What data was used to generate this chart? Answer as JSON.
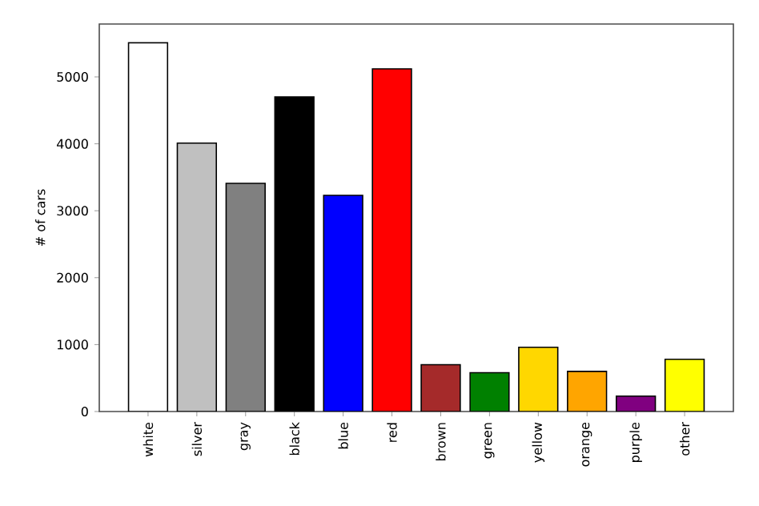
{
  "chart_data": {
    "type": "bar",
    "ylabel": "# of cars",
    "categories": [
      "white",
      "silver",
      "gray",
      "black",
      "blue",
      "red",
      "brown",
      "green",
      "yellow",
      "orange",
      "purple",
      "other"
    ],
    "values": [
      5510,
      4010,
      3410,
      4700,
      3230,
      5120,
      700,
      580,
      960,
      600,
      230,
      780
    ],
    "colors": [
      "#ffffff",
      "#c0c0c0",
      "#808080",
      "#000000",
      "#0000ff",
      "#ff0000",
      "#a52a2a",
      "#008000",
      "#ffd700",
      "#ffa500",
      "#800080",
      "#ffff00"
    ],
    "ylim": [
      0,
      5790
    ],
    "yticks": [
      0,
      1000,
      2000,
      3000,
      4000,
      5000
    ]
  }
}
